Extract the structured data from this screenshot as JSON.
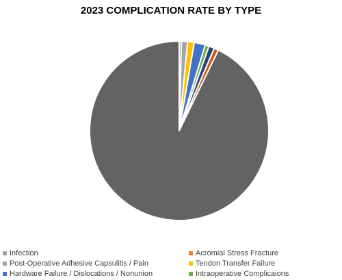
{
  "chart_data": {
    "type": "pie",
    "title": "2023 COMPLICATION RATE BY TYPE",
    "legend_position": "bottom",
    "slices": [
      {
        "label": "Infection",
        "value": 0.4,
        "color": "#a5a5a5"
      },
      {
        "label": "Post-Operative Adhesive Capsulitis / Pain",
        "value": 1.1,
        "color": "#a5a5a5"
      },
      {
        "label": "Tendon Transfer Failure",
        "value": 1.2,
        "color": "#ffc000"
      },
      {
        "label": "Hardware Failure / Dislocations / Nonunion",
        "value": 2.0,
        "color": "#4472c4"
      },
      {
        "label": "Intraoperative Complicaions",
        "value": 0.7,
        "color": "#70ad47"
      },
      {
        "label": "",
        "value": 1.0,
        "color": "#264478"
      },
      {
        "label": "Acromial Stress Fracture",
        "value": 0.8,
        "color": "#c55a11"
      },
      {
        "label": "",
        "value": 92.8,
        "color": "#636363"
      }
    ],
    "legend": [
      {
        "label": "Infection",
        "color": "#a5a5a5"
      },
      {
        "label": "Acromial Stress Fracture",
        "color": "#ed7d31"
      },
      {
        "label": "Post-Operative Adhesive Capsulitis / Pain",
        "color": "#a5a5a5"
      },
      {
        "label": "Tendon Transfer Failure",
        "color": "#ffc000"
      },
      {
        "label": "Hardware Failure / Dislocations / Nonunion",
        "color": "#4472c4"
      },
      {
        "label": "Intraoperative Complicaions",
        "color": "#70ad47"
      }
    ]
  }
}
